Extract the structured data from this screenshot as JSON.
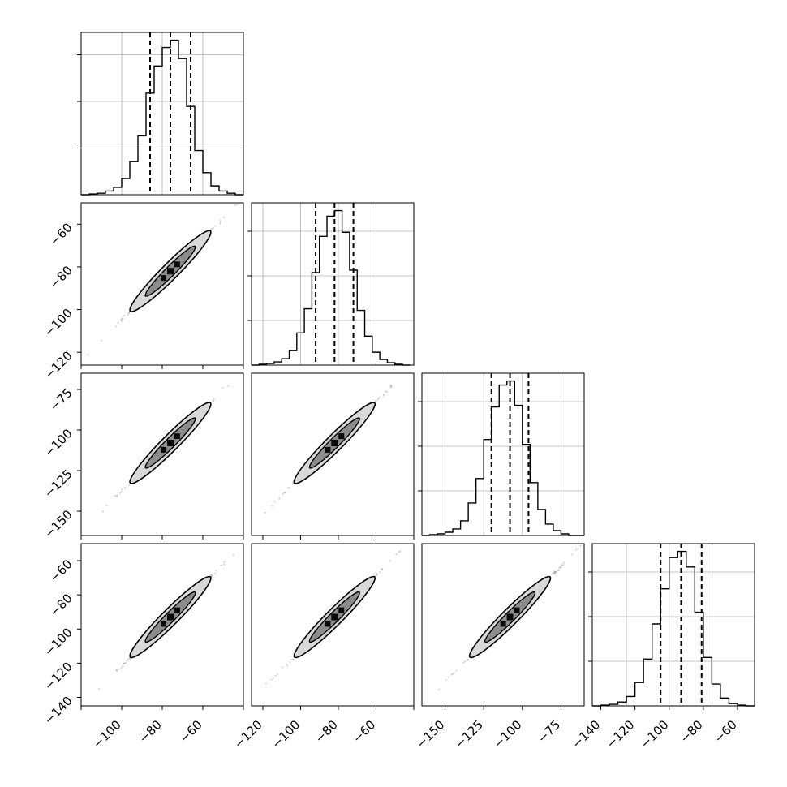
{
  "chart_data": {
    "type": "corner",
    "grid": true,
    "histograms": [
      {
        "index": 0,
        "xlim": [
          -120,
          -40
        ],
        "quantiles": [
          -86,
          -76,
          -66
        ],
        "bins_edges": [
          -120,
          -116,
          -112,
          -108,
          -104,
          -100,
          -96,
          -92,
          -88,
          -84,
          -80,
          -76,
          -72,
          -68,
          -64,
          -60,
          -56,
          -52,
          -48,
          -44,
          -40
        ],
        "counts": [
          0,
          1,
          2,
          5,
          10,
          22,
          45,
          80,
          138,
          175,
          200,
          210,
          185,
          120,
          60,
          30,
          12,
          5,
          2,
          0
        ]
      },
      {
        "index": 1,
        "xlim": [
          -126,
          -40
        ],
        "quantiles": [
          -92,
          -82,
          -72
        ],
        "bins_edges": [
          -126,
          -122,
          -118,
          -114,
          -110,
          -106,
          -102,
          -98,
          -94,
          -90,
          -86,
          -82,
          -78,
          -74,
          -70,
          -66,
          -62,
          -58,
          -54,
          -50,
          -46,
          -42
        ],
        "counts": [
          0,
          1,
          2,
          4,
          8,
          18,
          40,
          70,
          115,
          160,
          185,
          192,
          165,
          118,
          68,
          36,
          16,
          7,
          3,
          1,
          0
        ]
      },
      {
        "index": 2,
        "xlim": [
          -165,
          -60
        ],
        "quantiles": [
          -120,
          -108,
          -96
        ],
        "bins_edges": [
          -165,
          -160,
          -155,
          -150,
          -145,
          -140,
          -135,
          -130,
          -125,
          -120,
          -115,
          -110,
          -105,
          -100,
          -95,
          -90,
          -85,
          -80,
          -75,
          -70,
          -65,
          -60
        ],
        "counts": [
          0,
          1,
          2,
          4,
          8,
          18,
          40,
          70,
          118,
          158,
          185,
          190,
          160,
          112,
          65,
          32,
          14,
          6,
          2,
          0,
          0
        ]
      },
      {
        "index": 3,
        "xlim": [
          -145,
          -50
        ],
        "quantiles": [
          -105,
          -93,
          -81
        ],
        "bins_edges": [
          -145,
          -140,
          -135,
          -130,
          -125,
          -120,
          -115,
          -110,
          -105,
          -100,
          -95,
          -90,
          -85,
          -80,
          -75,
          -70,
          -65,
          -60,
          -55,
          -50
        ],
        "counts": [
          0,
          1,
          2,
          5,
          12,
          30,
          60,
          105,
          150,
          190,
          198,
          178,
          120,
          62,
          28,
          10,
          3,
          1,
          0
        ]
      }
    ],
    "pairs": [
      {
        "row": 1,
        "col": 0,
        "xlim": [
          -120,
          -40
        ],
        "ylim": [
          -126,
          -50
        ],
        "center": [
          -76,
          -82
        ],
        "r": 0.996
      },
      {
        "row": 2,
        "col": 0,
        "xlim": [
          -120,
          -40
        ],
        "ylim": [
          -165,
          -65
        ],
        "center": [
          -76,
          -108
        ],
        "r": 0.996
      },
      {
        "row": 2,
        "col": 1,
        "xlim": [
          -126,
          -40
        ],
        "ylim": [
          -165,
          -65
        ],
        "center": [
          -82,
          -108
        ],
        "r": 0.996
      },
      {
        "row": 3,
        "col": 0,
        "xlim": [
          -120,
          -40
        ],
        "ylim": [
          -145,
          -50
        ],
        "center": [
          -76,
          -93
        ],
        "r": 0.993
      },
      {
        "row": 3,
        "col": 1,
        "xlim": [
          -126,
          -40
        ],
        "ylim": [
          -145,
          -50
        ],
        "center": [
          -82,
          -93
        ],
        "r": 0.993
      },
      {
        "row": 3,
        "col": 2,
        "xlim": [
          -165,
          -60
        ],
        "ylim": [
          -145,
          -50
        ],
        "center": [
          -108,
          -93
        ],
        "r": 0.993
      }
    ],
    "y_tick_labels": {
      "row1": [
        "−60",
        "−80",
        "−100",
        "−120"
      ],
      "row2": [
        "−75",
        "−100",
        "−125",
        "−150"
      ],
      "row3": [
        "−60",
        "−80",
        "−100",
        "−120",
        "−140"
      ]
    },
    "x_tick_labels": {
      "col0": [
        "−100",
        "−80",
        "−60"
      ],
      "col1": [
        "−120",
        "−100",
        "−80",
        "−60"
      ],
      "col2": [
        "−150",
        "−125",
        "−100",
        "−75"
      ],
      "col3": [
        "−140",
        "−120",
        "−100",
        "−80",
        "−60"
      ]
    }
  },
  "colors": {
    "frame": "#000000",
    "grid": "#b0b0b0",
    "contour_fill_light": "#d9d9d9",
    "contour_fill_mid": "#8c8c8c",
    "contour_fill_dark": "#0a0a0a",
    "scatter": "#888888"
  }
}
